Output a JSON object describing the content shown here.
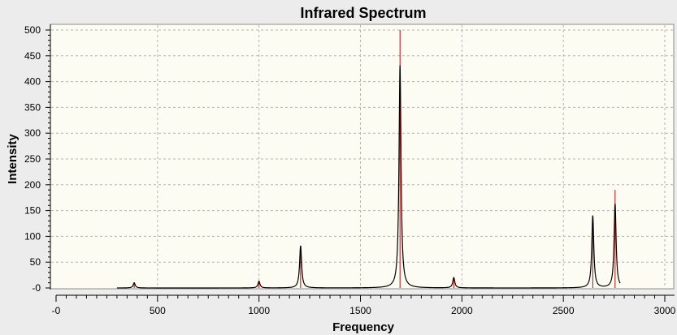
{
  "chart_data": {
    "type": "line",
    "title": "Infrared Spectrum",
    "xlabel": "Frequency",
    "ylabel": "Intensity",
    "xlim": [
      0,
      3000
    ],
    "ylim": [
      0,
      500
    ],
    "x_ticks": [
      {
        "value": 0,
        "label": "-0"
      },
      {
        "value": 500,
        "label": "500"
      },
      {
        "value": 1000,
        "label": "1000"
      },
      {
        "value": 1500,
        "label": "1500"
      },
      {
        "value": 2000,
        "label": "2000"
      },
      {
        "value": 2500,
        "label": "2500"
      },
      {
        "value": 3000,
        "label": "3000"
      }
    ],
    "y_ticks": [
      {
        "value": 0,
        "label": "-0"
      },
      {
        "value": 50,
        "label": "50"
      },
      {
        "value": 100,
        "label": "100"
      },
      {
        "value": 150,
        "label": "150"
      },
      {
        "value": 200,
        "label": "200"
      },
      {
        "value": 250,
        "label": "250"
      },
      {
        "value": 300,
        "label": "300"
      },
      {
        "value": 350,
        "label": "350"
      },
      {
        "value": 400,
        "label": "400"
      },
      {
        "value": 450,
        "label": "450"
      },
      {
        "value": 500,
        "label": "500"
      }
    ],
    "grid": true,
    "legend": "none",
    "series": [
      {
        "type": "stick",
        "color": "#cc0000",
        "peaks": [
          {
            "x": 385,
            "y": 8
          },
          {
            "x": 1000,
            "y": 12
          },
          {
            "x": 1205,
            "y": 80
          },
          {
            "x": 1695,
            "y": 500
          },
          {
            "x": 1960,
            "y": 20
          },
          {
            "x": 2645,
            "y": 140
          },
          {
            "x": 2755,
            "y": 190
          }
        ]
      },
      {
        "type": "line",
        "color": "#000000",
        "peaks": [
          {
            "x": 385,
            "y": 10
          },
          {
            "x": 1000,
            "y": 13
          },
          {
            "x": 1205,
            "y": 82
          },
          {
            "x": 1695,
            "y": 432
          },
          {
            "x": 1960,
            "y": 20
          },
          {
            "x": 2645,
            "y": 140
          },
          {
            "x": 2755,
            "y": 163
          }
        ]
      }
    ],
    "colors": {
      "plot_background": "#fcfcf2",
      "window_background": "#ececec",
      "grid": "#b4b4b4",
      "axis": "#000000"
    }
  }
}
